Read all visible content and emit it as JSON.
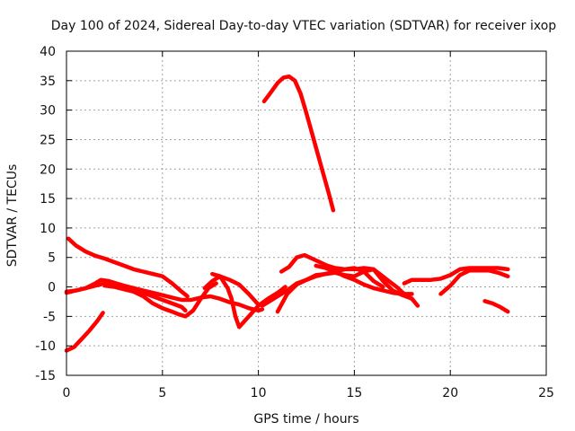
{
  "chart_data": {
    "type": "line",
    "title": "Day 100 of 2024, Sidereal Day-to-day VTEC variation (SDTVAR) for receiver ixop",
    "xlabel": "GPS time / hours",
    "ylabel": "SDTVAR / TECUs",
    "xlim": [
      0,
      25
    ],
    "ylim": [
      -15,
      40
    ],
    "xticks": [
      0,
      5,
      10,
      15,
      20,
      25
    ],
    "yticks": [
      -15,
      -10,
      -5,
      0,
      5,
      10,
      15,
      20,
      25,
      30,
      35,
      40
    ],
    "grid": true,
    "color": "#ff0000",
    "series": [
      {
        "name": "s1",
        "x": [
          0.1,
          0.5,
          1.0,
          1.5,
          2.0,
          2.5,
          3.0,
          3.5,
          4.0,
          4.5,
          5.0,
          5.5,
          6.0,
          6.3
        ],
        "y": [
          8.2,
          7.0,
          6.0,
          5.3,
          4.8,
          4.2,
          3.6,
          3.0,
          2.6,
          2.2,
          1.8,
          0.6,
          -0.8,
          -1.6
        ]
      },
      {
        "name": "s2",
        "x": [
          0.0,
          0.5,
          1.0,
          1.5,
          1.8,
          2.2,
          2.6,
          3.0,
          3.5,
          4.0,
          4.5,
          5.0,
          5.5,
          6.0,
          6.5,
          7.0,
          7.5,
          8.0,
          8.5,
          9.0,
          9.5,
          10.0,
          10.2
        ],
        "y": [
          -0.8,
          -0.6,
          -0.2,
          0.6,
          1.2,
          1.0,
          0.6,
          0.2,
          -0.2,
          -0.6,
          -1.0,
          -1.4,
          -1.8,
          -2.2,
          -2.2,
          -1.8,
          -1.6,
          -2.0,
          -2.6,
          -3.0,
          -3.6,
          -4.0,
          -3.8
        ]
      },
      {
        "name": "s3",
        "x": [
          0.0,
          0.5,
          1.0,
          1.5,
          2.0,
          2.5,
          3.0,
          3.5,
          4.0,
          4.5,
          5.0,
          5.5,
          6.0,
          6.2
        ],
        "y": [
          -1.0,
          -0.6,
          -0.2,
          0.2,
          0.6,
          0.4,
          0.0,
          -0.2,
          -1.0,
          -1.6,
          -2.2,
          -2.8,
          -3.4,
          -4.0
        ]
      },
      {
        "name": "s4",
        "x": [
          2.0,
          2.5,
          3.0,
          3.5,
          4.0,
          4.5,
          5.0,
          5.5,
          5.8,
          6.2,
          6.6,
          7.0,
          7.4,
          7.8
        ],
        "y": [
          0.2,
          0.0,
          -0.4,
          -0.8,
          -1.6,
          -2.8,
          -3.6,
          -4.2,
          -4.6,
          -5.0,
          -4.0,
          -2.0,
          -0.2,
          0.6
        ]
      },
      {
        "name": "s5",
        "x": [
          0.0,
          0.4,
          0.8,
          1.2,
          1.6,
          1.9
        ],
        "y": [
          -10.8,
          -10.2,
          -8.8,
          -7.4,
          -5.8,
          -4.4
        ]
      },
      {
        "name": "s6",
        "x": [
          7.2,
          7.6,
          8.0,
          8.4,
          8.6,
          8.8,
          9.0,
          9.5,
          10.0,
          10.5,
          11.0,
          11.4
        ],
        "y": [
          -0.2,
          1.0,
          1.8,
          -0.2,
          -2.0,
          -5.0,
          -6.8,
          -5.0,
          -3.2,
          -2.0,
          -1.0,
          0.0
        ]
      },
      {
        "name": "s7",
        "x": [
          7.6,
          8.0,
          8.5,
          9.0,
          9.5,
          10.0
        ],
        "y": [
          2.2,
          1.8,
          1.2,
          0.4,
          -1.2,
          -3.0
        ]
      },
      {
        "name": "s8",
        "x": [
          10.3,
          10.6,
          11.0,
          11.3,
          11.6,
          11.9,
          12.2,
          12.5,
          12.8,
          13.1,
          13.4,
          13.7,
          13.9
        ],
        "y": [
          31.5,
          32.8,
          34.6,
          35.5,
          35.7,
          35.0,
          32.8,
          29.5,
          26.0,
          22.5,
          19.0,
          15.5,
          13.0
        ]
      },
      {
        "name": "s9",
        "x": [
          11.2,
          11.6,
          12.0,
          12.4,
          12.8,
          13.2,
          13.6,
          14.0,
          14.5,
          15.0,
          15.5,
          16.0,
          16.4,
          16.8,
          17.2,
          17.6,
          18.0,
          18.3
        ],
        "y": [
          2.6,
          3.4,
          5.0,
          5.4,
          4.8,
          4.2,
          3.6,
          3.2,
          3.0,
          3.0,
          3.2,
          3.0,
          2.0,
          1.0,
          0.0,
          -1.2,
          -2.0,
          -3.2
        ]
      },
      {
        "name": "s10",
        "x": [
          10.2,
          10.5,
          11.0,
          11.5,
          12.0,
          12.5,
          13.0,
          13.5,
          14.0,
          14.5,
          15.0,
          15.5,
          16.0,
          16.5
        ],
        "y": [
          -3.2,
          -2.6,
          -1.6,
          -0.6,
          0.6,
          1.2,
          1.8,
          2.2,
          2.6,
          3.0,
          3.2,
          2.6,
          1.0,
          0.0
        ]
      },
      {
        "name": "s11",
        "x": [
          11.0,
          11.5,
          12.0,
          12.5,
          13.0,
          13.5,
          14.0,
          14.5,
          15.0,
          15.5,
          16.0,
          16.5,
          17.0,
          17.5,
          18.0
        ],
        "y": [
          -4.2,
          -1.2,
          0.4,
          1.2,
          2.0,
          2.2,
          2.4,
          2.0,
          1.8,
          2.6,
          3.0,
          1.0,
          -0.6,
          -1.4,
          -2.0
        ]
      },
      {
        "name": "s12",
        "x": [
          13.0,
          13.5,
          14.0,
          14.5,
          15.0,
          15.5,
          16.0,
          16.5,
          17.0,
          17.5,
          18.0
        ],
        "y": [
          3.6,
          3.2,
          2.6,
          1.8,
          1.2,
          0.4,
          -0.2,
          -0.6,
          -1.0,
          -1.2,
          -1.2
        ]
      },
      {
        "name": "s13",
        "x": [
          17.6,
          18.0,
          18.5,
          19.0,
          19.5,
          20.0,
          20.5,
          21.0,
          21.5,
          22.0,
          22.5,
          23.0
        ],
        "y": [
          0.6,
          1.2,
          1.2,
          1.2,
          1.4,
          2.0,
          3.0,
          3.2,
          3.2,
          3.2,
          3.2,
          3.0
        ]
      },
      {
        "name": "s14",
        "x": [
          19.5,
          20.0,
          20.5,
          21.0,
          21.5,
          22.0,
          22.5,
          23.0
        ],
        "y": [
          -1.2,
          0.2,
          2.0,
          2.8,
          2.8,
          2.8,
          2.4,
          1.8
        ]
      },
      {
        "name": "s15",
        "x": [
          21.8,
          22.2,
          22.6,
          23.0
        ],
        "y": [
          -2.4,
          -2.8,
          -3.4,
          -4.2
        ]
      }
    ]
  }
}
